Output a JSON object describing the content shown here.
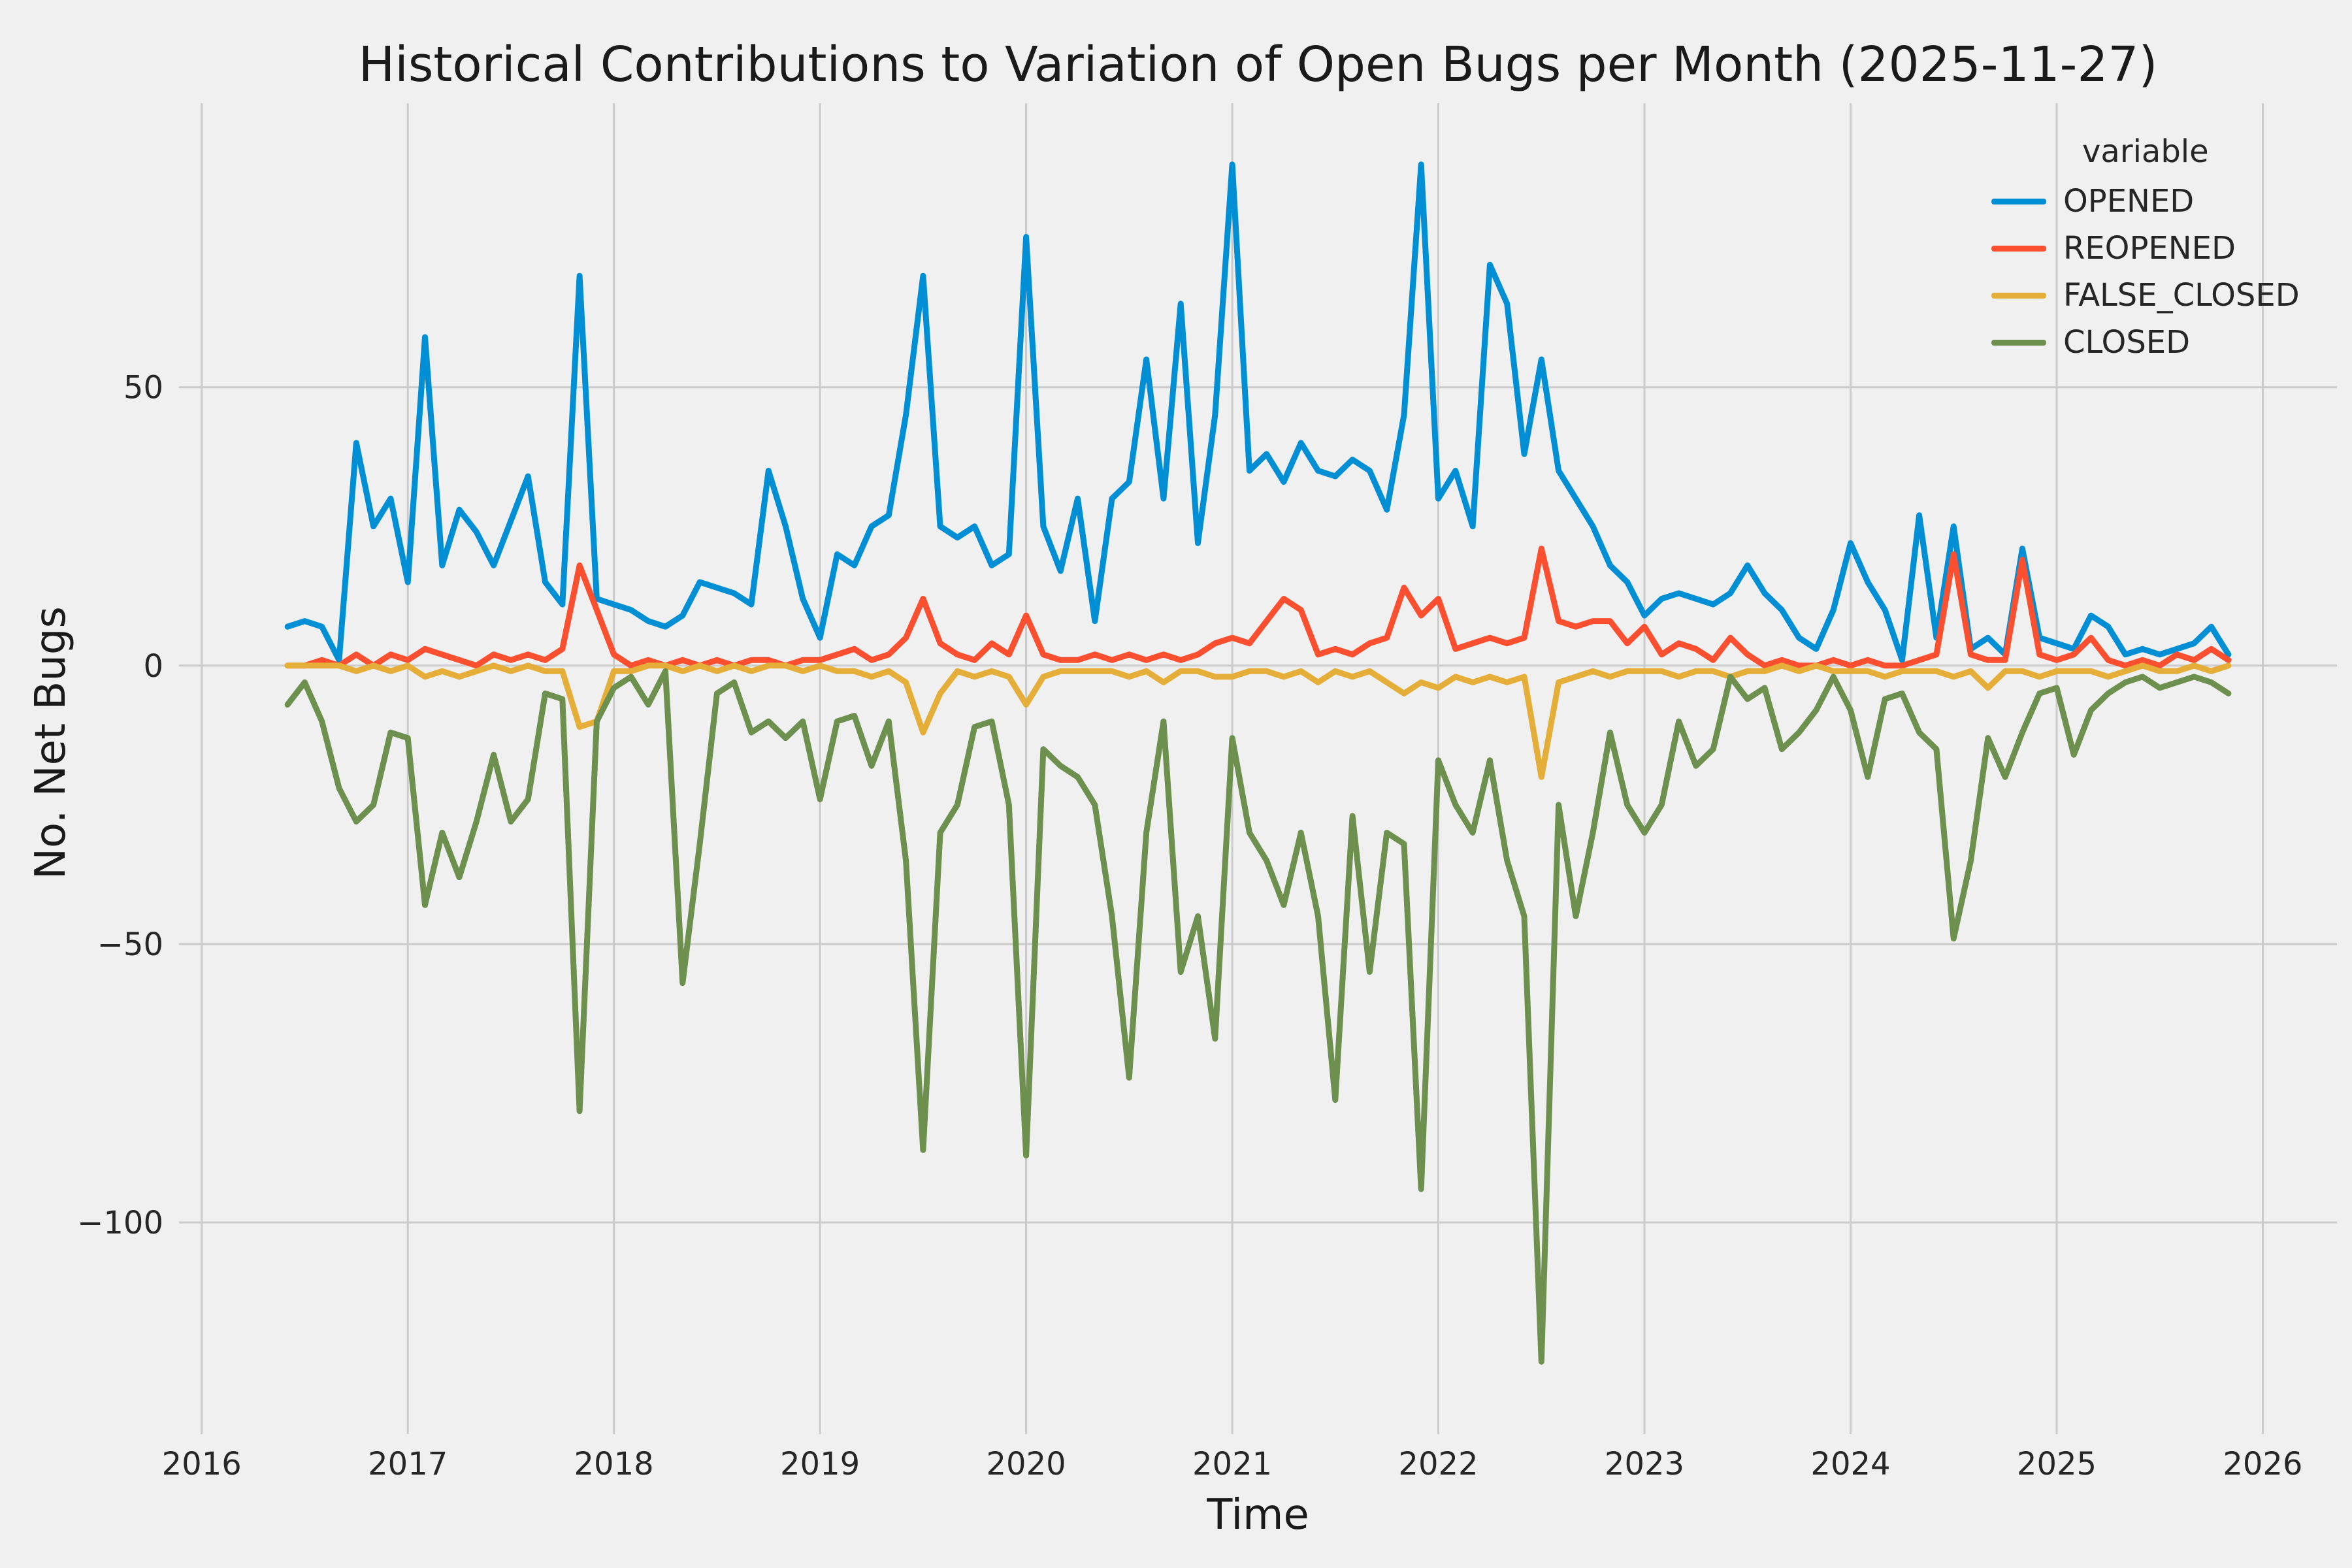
{
  "chart_data": {
    "type": "line",
    "title": "Historical Contributions to Variation of Open Bugs per Month (2025-11-27)",
    "xlabel": "Time",
    "ylabel": "No. Net Bugs",
    "legend_title": "variable",
    "legend_position": "upper right",
    "grid": true,
    "grid_color": "#cbcbcb",
    "background_color": "#f0f0f0",
    "text_color": "#262626",
    "xlim": [
      2015.89,
      2026.36
    ],
    "ylim": [
      -138,
      101
    ],
    "xticks": [
      {
        "v": 2016,
        "label": "2016"
      },
      {
        "v": 2017,
        "label": "2017"
      },
      {
        "v": 2018,
        "label": "2018"
      },
      {
        "v": 2019,
        "label": "2019"
      },
      {
        "v": 2020,
        "label": "2020"
      },
      {
        "v": 2021,
        "label": "2021"
      },
      {
        "v": 2022,
        "label": "2022"
      },
      {
        "v": 2023,
        "label": "2023"
      },
      {
        "v": 2024,
        "label": "2024"
      },
      {
        "v": 2025,
        "label": "2025"
      },
      {
        "v": 2026,
        "label": "2026"
      }
    ],
    "yticks": [
      {
        "v": 50,
        "label": "50"
      },
      {
        "v": 0,
        "label": "0"
      },
      {
        "v": -50,
        "label": "−50"
      },
      {
        "v": -100,
        "label": "−100"
      }
    ],
    "x_start": {
      "year": 2016,
      "month": 6
    },
    "x_frequency": "monthly",
    "series": [
      {
        "name": "OPENED",
        "color": "#008fd5",
        "values": [
          7,
          8,
          7,
          1,
          40,
          25,
          30,
          15,
          59,
          18,
          28,
          24,
          18,
          26,
          34,
          15,
          11,
          70,
          12,
          11,
          10,
          8,
          7,
          9,
          15,
          14,
          13,
          11,
          35,
          25,
          12,
          5,
          20,
          18,
          25,
          27,
          45,
          70,
          25,
          23,
          25,
          18,
          20,
          77,
          25,
          17,
          30,
          8,
          30,
          33,
          55,
          30,
          65,
          22,
          45,
          90,
          35,
          38,
          33,
          40,
          35,
          34,
          37,
          35,
          28,
          45,
          90,
          30,
          35,
          25,
          72,
          65,
          38,
          55,
          35,
          30,
          25,
          18,
          15,
          9,
          12,
          13,
          12,
          11,
          13,
          18,
          13,
          10,
          5,
          3,
          10,
          22,
          15,
          10,
          1,
          27,
          5,
          25,
          3,
          5,
          2,
          21,
          5,
          4,
          3,
          9,
          7,
          2,
          3,
          2,
          3,
          4,
          7,
          2
        ]
      },
      {
        "name": "REOPENED",
        "color": "#fc4f30",
        "values": [
          0,
          0,
          1,
          0,
          2,
          0,
          2,
          1,
          3,
          2,
          1,
          0,
          2,
          1,
          2,
          1,
          3,
          18,
          10,
          2,
          0,
          1,
          0,
          1,
          0,
          1,
          0,
          1,
          1,
          0,
          1,
          1,
          2,
          3,
          1,
          2,
          5,
          12,
          4,
          2,
          1,
          4,
          2,
          9,
          2,
          1,
          1,
          2,
          1,
          2,
          1,
          2,
          1,
          2,
          4,
          5,
          4,
          8,
          12,
          10,
          2,
          3,
          2,
          4,
          5,
          14,
          9,
          12,
          3,
          4,
          5,
          4,
          5,
          21,
          8,
          7,
          8,
          8,
          4,
          7,
          2,
          4,
          3,
          1,
          5,
          2,
          0,
          1,
          0,
          0,
          1,
          0,
          1,
          0,
          0,
          1,
          2,
          20,
          2,
          1,
          1,
          19,
          2,
          1,
          2,
          5,
          1,
          0,
          1,
          0,
          2,
          1,
          3,
          1
        ]
      },
      {
        "name": "FALSE_CLOSED",
        "color": "#e5ae38",
        "values": [
          0,
          0,
          0,
          0,
          -1,
          0,
          -1,
          0,
          -2,
          -1,
          -2,
          -1,
          0,
          -1,
          0,
          -1,
          -1,
          -11,
          -10,
          -1,
          -1,
          0,
          0,
          -1,
          0,
          -1,
          0,
          -1,
          0,
          0,
          -1,
          0,
          -1,
          -1,
          -2,
          -1,
          -3,
          -12,
          -5,
          -1,
          -2,
          -1,
          -2,
          -7,
          -2,
          -1,
          -1,
          -1,
          -1,
          -2,
          -1,
          -3,
          -1,
          -1,
          -2,
          -2,
          -1,
          -1,
          -2,
          -1,
          -3,
          -1,
          -2,
          -1,
          -3,
          -5,
          -3,
          -4,
          -2,
          -3,
          -2,
          -3,
          -2,
          -20,
          -3,
          -2,
          -1,
          -2,
          -1,
          -1,
          -1,
          -2,
          -1,
          -1,
          -2,
          -1,
          -1,
          0,
          -1,
          0,
          -1,
          -1,
          -1,
          -2,
          -1,
          -1,
          -1,
          -2,
          -1,
          -4,
          -1,
          -1,
          -2,
          -1,
          -1,
          -1,
          -2,
          -1,
          0,
          -1,
          -1,
          0,
          -1,
          0
        ]
      },
      {
        "name": "CLOSED",
        "color": "#6d904f",
        "values": [
          -7,
          -3,
          -10,
          -22,
          -28,
          -25,
          -12,
          -13,
          -43,
          -30,
          -38,
          -28,
          -16,
          -28,
          -24,
          -5,
          -6,
          -80,
          -10,
          -4,
          -2,
          -7,
          -1,
          -57,
          -32,
          -5,
          -3,
          -12,
          -10,
          -13,
          -10,
          -24,
          -10,
          -9,
          -18,
          -10,
          -35,
          -87,
          -30,
          -25,
          -11,
          -10,
          -25,
          -88,
          -15,
          -18,
          -20,
          -25,
          -45,
          -74,
          -30,
          -10,
          -55,
          -45,
          -67,
          -13,
          -30,
          -35,
          -43,
          -30,
          -45,
          -78,
          -27,
          -55,
          -30,
          -32,
          -94,
          -17,
          -25,
          -30,
          -17,
          -35,
          -45,
          -125,
          -25,
          -45,
          -30,
          -12,
          -25,
          -30,
          -25,
          -10,
          -18,
          -15,
          -2,
          -6,
          -4,
          -15,
          -12,
          -8,
          -2,
          -8,
          -20,
          -6,
          -5,
          -12,
          -15,
          -49,
          -35,
          -13,
          -20,
          -12,
          -5,
          -4,
          -16,
          -8,
          -5,
          -3,
          -2,
          -4,
          -3,
          -2,
          -3,
          -5
        ]
      }
    ]
  }
}
